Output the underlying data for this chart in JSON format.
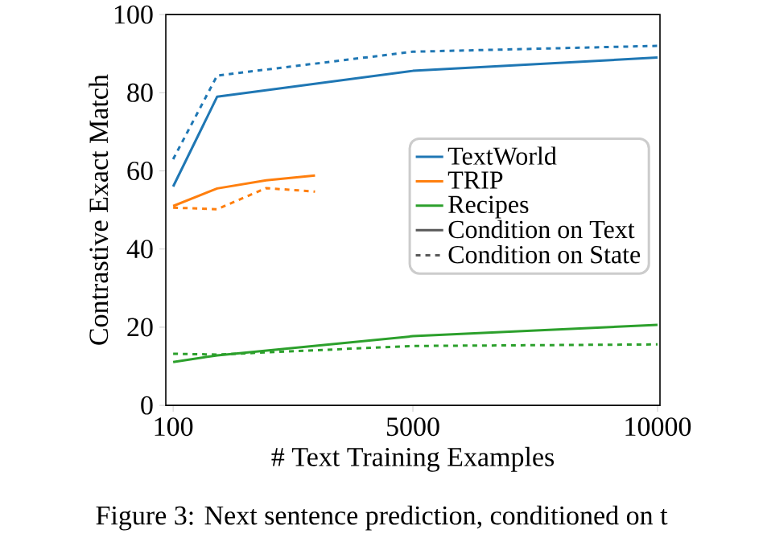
{
  "chart_data": {
    "type": "line",
    "xlabel": "# Text Training Examples",
    "ylabel": "Contrastive Exact Match",
    "xlim": [
      -50,
      10050
    ],
    "ylim": [
      0,
      100
    ],
    "xticks": [
      100,
      5000,
      10000
    ],
    "yticks": [
      0,
      20,
      40,
      60,
      80,
      100
    ],
    "legend": "right",
    "series": [
      {
        "name": "TextWorld",
        "color": "#1f77b4",
        "line_style": "solid",
        "x": [
          100,
          1000,
          5000,
          10000
        ],
        "values": [
          56,
          79,
          85.6,
          89
        ]
      },
      {
        "name": "TRIP",
        "color": "#ff7f0e",
        "line_style": "solid",
        "x": [
          100,
          1000,
          2000,
          3000
        ],
        "values": [
          51,
          55.5,
          57.6,
          58.8
        ]
      },
      {
        "name": "Recipes",
        "color": "#2ca02c",
        "line_style": "solid",
        "x": [
          100,
          1000,
          5000,
          10000
        ],
        "values": [
          11.1,
          12.8,
          17.7,
          20.6
        ]
      },
      {
        "color": "#1f77b4",
        "line_style": "dashed",
        "x": [
          100,
          1000,
          5000,
          10000
        ],
        "values": [
          63,
          84.4,
          90.5,
          92
        ]
      },
      {
        "color": "#ff7f0e",
        "line_style": "dashed",
        "x": [
          100,
          1000,
          2000,
          3000
        ],
        "values": [
          50.6,
          50.2,
          55.6,
          54.7
        ]
      },
      {
        "color": "#2ca02c",
        "line_style": "dashed",
        "x": [
          100,
          1000,
          5000,
          10000
        ],
        "values": [
          13.2,
          13,
          15.2,
          15.6
        ]
      }
    ],
    "annotations": [
      "Condition on Text",
      "Condition on State",
      "Figure 3: Next sentence prediction, conditioned on t"
    ]
  }
}
